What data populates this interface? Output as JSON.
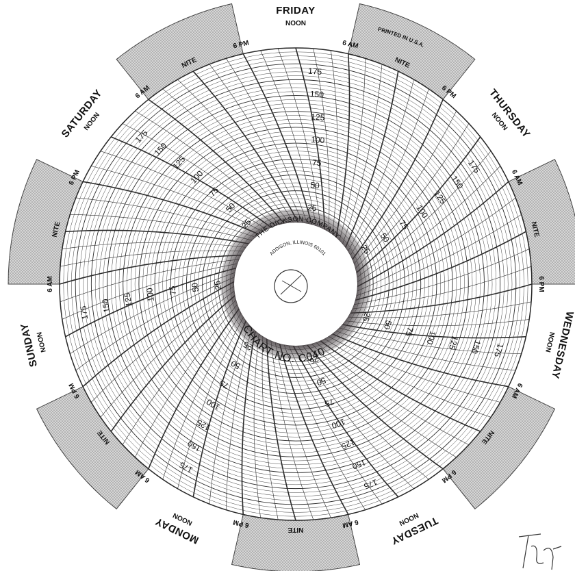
{
  "chart": {
    "days": [
      "FRIDAY",
      "THURSDAY",
      "WEDNESDAY",
      "TUESDAY",
      "MONDAY",
      "SUNDAY",
      "SATURDAY"
    ],
    "time_labels": [
      "6 AM",
      "NOON",
      "6 PM",
      "NITE"
    ],
    "scale_values": [
      "25",
      "50",
      "75",
      "100",
      "125",
      "150",
      "175"
    ],
    "company": "THE DICKSON COMPANY",
    "address": "ADDISON, ILLINOIS 60101",
    "chart_number": "CHART NO. C040",
    "printed_in": "PRINTED IN U.S.A.",
    "colors": {
      "grid": "#2a2a2a",
      "ink_stain": "#3b3437",
      "shaded_band": "#cfcfcf",
      "paper": "#ffffff"
    }
  },
  "signature": {
    "kind": "handwritten initials"
  }
}
